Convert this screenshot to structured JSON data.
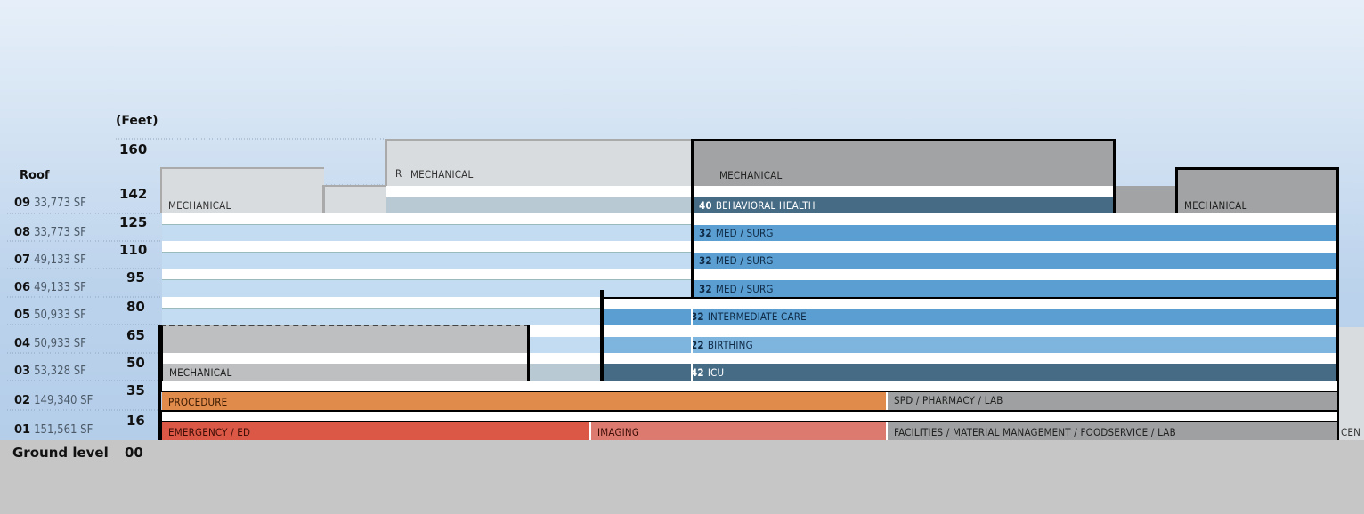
{
  "axis": {
    "unit_label": "(Feet)",
    "ticks": [
      "160",
      "142",
      "125",
      "110",
      "95",
      "80",
      "65",
      "50",
      "35",
      "16",
      "00"
    ],
    "ground_label": "Ground level",
    "roof_label": "Roof"
  },
  "floors": [
    {
      "num": "09",
      "area": "33,773 SF"
    },
    {
      "num": "08",
      "area": "33,773 SF"
    },
    {
      "num": "07",
      "area": "49,133 SF"
    },
    {
      "num": "06",
      "area": "49,133 SF"
    },
    {
      "num": "05",
      "area": "50,933 SF"
    },
    {
      "num": "04",
      "area": "50,933 SF"
    },
    {
      "num": "03",
      "area": "53,328 SF"
    },
    {
      "num": "02",
      "area": "149,340 SF"
    },
    {
      "num": "01",
      "area": "151,561 SF"
    }
  ],
  "program": {
    "mech_left": "MECHANICAL",
    "mech_center": "MECHANICAL",
    "mech_center_prefix": "R",
    "mech_right_top": "MECHANICAL",
    "mech_right": "MECHANICAL",
    "mech_low": "MECHANICAL",
    "behavioral_count": "40",
    "behavioral": "BEHAVIORAL HEALTH",
    "medsurg8_count": "32",
    "medsurg8": "MED / SURG",
    "medsurg7_count": "32",
    "medsurg7": "MED / SURG",
    "medsurg6_count": "32",
    "medsurg6": "MED / SURG",
    "intermediate_count": "32",
    "intermediate": "INTERMEDIATE CARE",
    "birthing_count": "22",
    "birthing": "BIRTHING",
    "icu_count": "42",
    "icu": "ICU",
    "procedure": "PROCEDURE",
    "spd": "SPD / PHARMACY / LAB",
    "emergency": "EMERGENCY / ED",
    "imaging": "IMAGING",
    "facilities": "FACILITIES / MATERIAL MANAGEMENT / FOODSERVICE / LAB",
    "cen": "CEN"
  },
  "colors": {
    "behavioral": "#456b85",
    "medsurg": "#5b9fd2",
    "birthing": "#7db5df",
    "icu": "#456b85",
    "procedure": "#e08a4c",
    "emergency": "#dc5846",
    "imaging": "#dc7a70",
    "support": "#9fa0a1"
  }
}
